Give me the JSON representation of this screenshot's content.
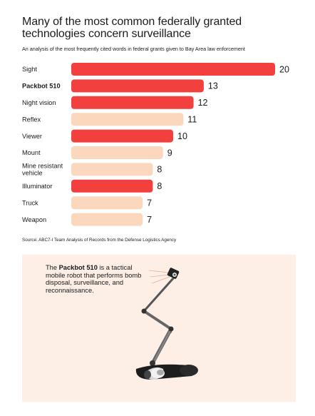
{
  "chart_data": {
    "type": "bar",
    "orientation": "horizontal",
    "title": "Many of the most common federally granted technologies concern surveillance",
    "subtitle": "An analysis of the most frequently cited words in federal grants given to Bay Area law enforcement",
    "categories": [
      "Sight",
      "Packbot 510",
      "Night vision",
      "Reflex",
      "Viewer",
      "Mount",
      "Mine resistant vehicle",
      "Illuminator",
      "Truck",
      "Weapon"
    ],
    "category_lines": [
      [
        "Sight"
      ],
      [
        "Packbot 510"
      ],
      [
        "Night vision"
      ],
      [
        "Reflex"
      ],
      [
        "Viewer"
      ],
      [
        "Mount"
      ],
      [
        "Mine resistant",
        "vehicle"
      ],
      [
        "Illuminator"
      ],
      [
        "Truck"
      ],
      [
        "Weapon"
      ]
    ],
    "values": [
      20,
      13,
      12,
      11,
      10,
      9,
      8,
      8,
      7,
      7
    ],
    "highlighted": [
      true,
      true,
      true,
      false,
      true,
      false,
      false,
      true,
      false,
      false
    ],
    "bold_label": [
      false,
      true,
      false,
      false,
      false,
      false,
      false,
      false,
      false,
      false
    ],
    "colors": {
      "highlight": "#f2403f",
      "muted": "#fad7bd"
    },
    "xlim": [
      0,
      20
    ],
    "source": "Source: ABC7-I Team Analysis of Records from the Defense Logistics Agency"
  },
  "robot_panel": {
    "caption_prefix": "The ",
    "caption_bold": "Packbot 510",
    "caption_suffix": " is a tactical mobile robot that performs bomb disposal, surveillance, and reconnaissance.",
    "illustration_icon": "packbot-robot-icon",
    "background": "#fdeee6"
  }
}
